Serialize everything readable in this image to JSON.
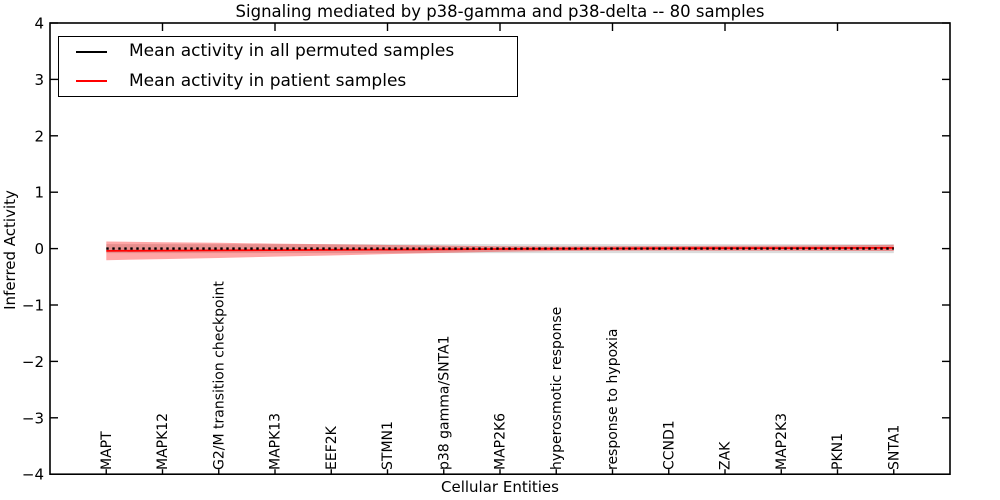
{
  "figure": {
    "background": "#ffffff",
    "spine_color": "#000000"
  },
  "legend": {
    "position": "upper left",
    "entries": [
      {
        "label": "Mean activity in all permuted samples",
        "color": "#000000",
        "line_style": "solid"
      },
      {
        "label": "Mean activity in patient samples",
        "color": "#ff0000",
        "line_style": "solid"
      }
    ]
  },
  "chart_data": {
    "type": "line",
    "title": "Signaling mediated by p38-gamma and p38-delta -- 80 samples",
    "xlabel": "Cellular Entities",
    "ylabel": "Inferred Activity",
    "xlim": [
      0,
      16
    ],
    "ylim": [
      -4,
      4
    ],
    "yticks": [
      4,
      3,
      2,
      1,
      0,
      -1,
      -2,
      -3,
      -4
    ],
    "xticks_top": [
      2,
      4,
      6,
      8,
      10,
      12,
      14
    ],
    "grid": false,
    "legend_position": "upper left",
    "categories": [
      "MAPT",
      "MAPK12",
      "G2/M transition checkpoint",
      "MAPK13",
      "EEF2K",
      "STMN1",
      "p38 gamma/SNTA1",
      "MAP2K6",
      "hyperosmotic response",
      "response to hypoxia",
      "CCND1",
      "ZAK",
      "MAP2K3",
      "PKN1",
      "SNTA1"
    ],
    "x": [
      1,
      2,
      3,
      4,
      5,
      6,
      7,
      8,
      9,
      10,
      11,
      12,
      13,
      14,
      15
    ],
    "series": [
      {
        "name": "Mean activity in all permuted samples",
        "color": "#000000",
        "style": "dashed",
        "values": [
          0,
          0,
          0,
          0,
          0,
          0,
          0,
          0,
          0,
          0,
          0,
          0,
          0,
          0,
          0
        ],
        "band_halfwidth": [
          0.08,
          0.08,
          0.08,
          0.08,
          0.08,
          0.08,
          0.08,
          0.08,
          0.08,
          0.08,
          0.08,
          0.08,
          0.08,
          0.08,
          0.08
        ],
        "band_color": "rgba(0,0,0,0.14)"
      },
      {
        "name": "Mean activity in patient samples",
        "color": "#ff0000",
        "style": "solid",
        "values": [
          -0.04,
          -0.036,
          -0.032,
          -0.027,
          -0.022,
          -0.017,
          -0.012,
          -0.007,
          -0.002,
          0.002,
          0.005,
          0.007,
          0.008,
          0.01,
          0.012
        ],
        "band_halfwidth": [
          0.165,
          0.15,
          0.135,
          0.115,
          0.1,
          0.08,
          0.065,
          0.05,
          0.04,
          0.04,
          0.04,
          0.045,
          0.045,
          0.05,
          0.055
        ],
        "band_color": "rgba(255,0,0,0.35)"
      }
    ]
  }
}
